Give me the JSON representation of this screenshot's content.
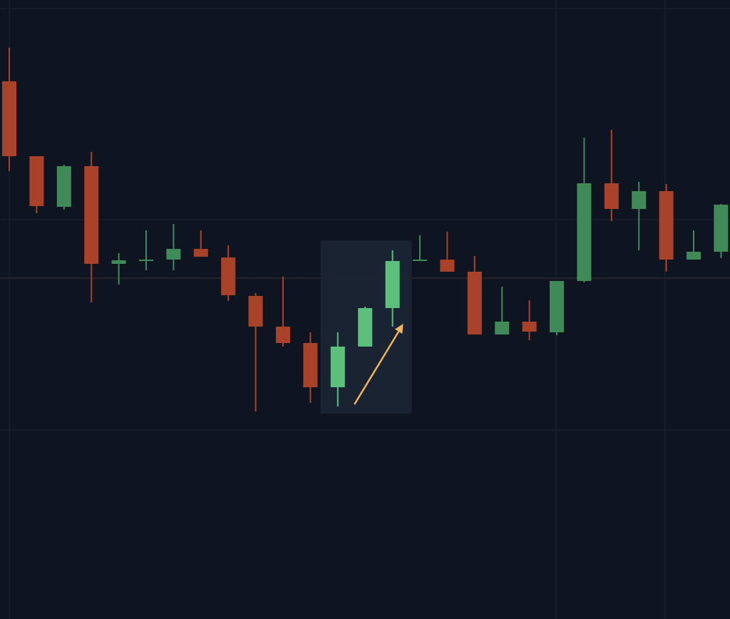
{
  "chart_data": {
    "type": "candlestick",
    "title": "",
    "xlabel": "",
    "ylabel": "",
    "ylim": [
      0,
      86.8
    ],
    "grid": true,
    "colors": {
      "background": "#0f1520",
      "bearish": "#a8432a",
      "bullish": "#3f8a57",
      "bullish_highlight": "#5cc07c",
      "highlight_box": "#1c2533",
      "arrow": "#f0b45a",
      "grid": "#1c2330",
      "crosshair": "#3a3236"
    },
    "highlight": {
      "from_index": 12,
      "to_index": 14,
      "arrow": "up"
    },
    "candles": [
      {
        "o": 75.4,
        "h": 80.1,
        "l": 62.8,
        "c": 64.9
      },
      {
        "o": 64.9,
        "h": 64.9,
        "l": 56.9,
        "c": 57.9
      },
      {
        "o": 57.8,
        "h": 63.7,
        "l": 57.4,
        "c": 63.5
      },
      {
        "o": 63.5,
        "h": 65.5,
        "l": 44.4,
        "c": 49.8
      },
      {
        "o": 49.8,
        "h": 51.3,
        "l": 46.9,
        "c": 50.3
      },
      {
        "o": 50.2,
        "h": 54.5,
        "l": 48.9,
        "c": 50.4
      },
      {
        "o": 50.4,
        "h": 55.4,
        "l": 48.9,
        "c": 51.9
      },
      {
        "o": 51.9,
        "h": 54.5,
        "l": 50.8,
        "c": 50.8
      },
      {
        "o": 50.7,
        "h": 52.4,
        "l": 44.6,
        "c": 45.4
      },
      {
        "o": 45.3,
        "h": 45.7,
        "l": 29.1,
        "c": 41.0
      },
      {
        "o": 41.0,
        "h": 48.0,
        "l": 38.2,
        "c": 38.7
      },
      {
        "o": 38.7,
        "h": 40.2,
        "l": 30.3,
        "c": 32.5
      },
      {
        "o": 32.5,
        "h": 40.2,
        "l": 29.8,
        "c": 38.2
      },
      {
        "o": 38.2,
        "h": 43.8,
        "l": 38.2,
        "c": 43.6
      },
      {
        "o": 43.6,
        "h": 51.7,
        "l": 41.0,
        "c": 50.2
      },
      {
        "o": 50.2,
        "h": 53.8,
        "l": 50.2,
        "c": 50.4
      },
      {
        "o": 50.4,
        "h": 54.3,
        "l": 48.7,
        "c": 48.7
      },
      {
        "o": 48.7,
        "h": 50.9,
        "l": 39.9,
        "c": 39.9
      },
      {
        "o": 39.9,
        "h": 46.6,
        "l": 39.9,
        "c": 41.7
      },
      {
        "o": 41.7,
        "h": 44.7,
        "l": 39.1,
        "c": 40.3
      },
      {
        "o": 40.2,
        "h": 47.4,
        "l": 39.8,
        "c": 47.4
      },
      {
        "o": 47.4,
        "h": 67.5,
        "l": 47.2,
        "c": 61.1
      },
      {
        "o": 61.1,
        "h": 68.6,
        "l": 55.8,
        "c": 57.5
      },
      {
        "o": 57.5,
        "h": 61.3,
        "l": 51.7,
        "c": 60.0
      },
      {
        "o": 60.0,
        "h": 61.0,
        "l": 48.7,
        "c": 50.4
      },
      {
        "o": 50.4,
        "h": 54.5,
        "l": 50.4,
        "c": 51.5
      },
      {
        "o": 51.5,
        "h": 58.2,
        "l": 50.6,
        "c": 58.1
      }
    ]
  }
}
